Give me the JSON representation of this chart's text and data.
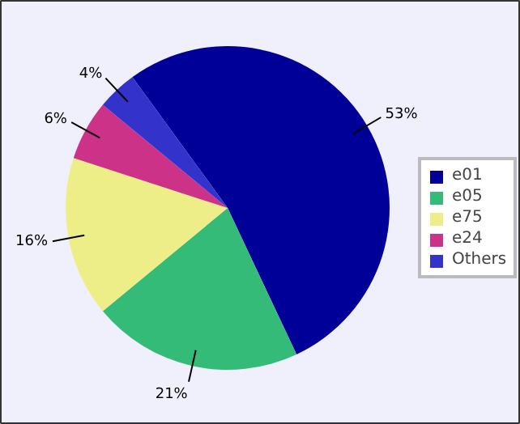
{
  "chart_data": {
    "type": "pie",
    "categories": [
      "e01",
      "e05",
      "e75",
      "e24",
      "Others"
    ],
    "values": [
      53,
      21,
      16,
      6,
      4
    ],
    "colors": [
      "#000099",
      "#33bb77",
      "#eeee88",
      "#cc3388",
      "#3333cc"
    ],
    "value_labels": [
      "53%",
      "21%",
      "16%",
      "6%",
      "4%"
    ],
    "legend": "right"
  }
}
